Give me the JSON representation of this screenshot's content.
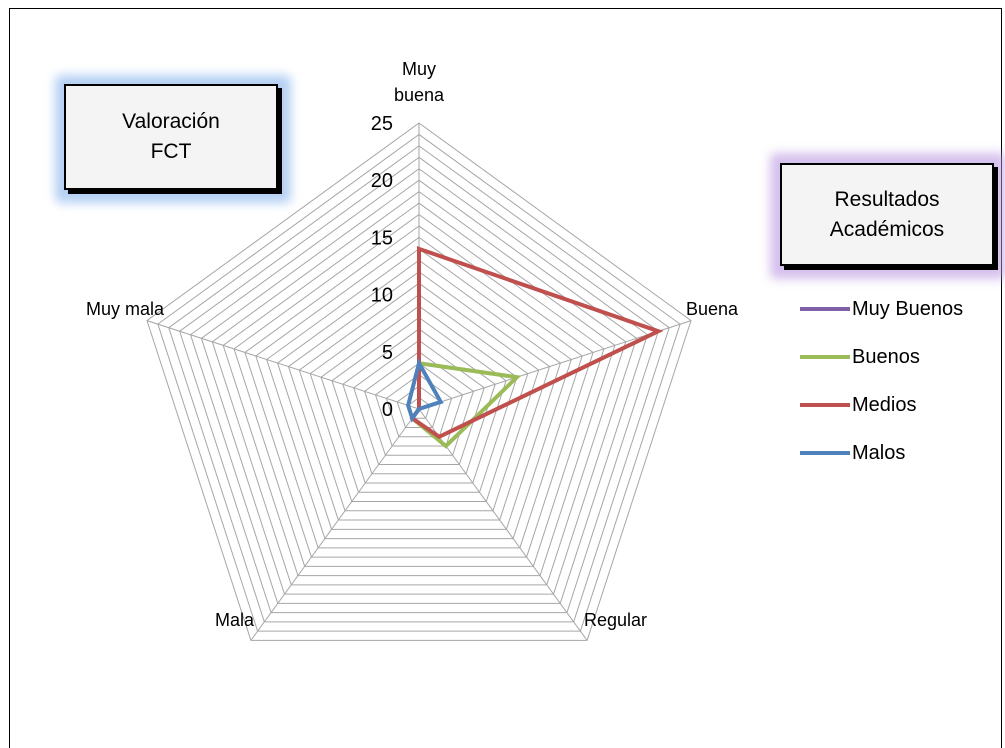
{
  "titles": {
    "main": [
      "Valoración",
      "FCT"
    ],
    "secondary": [
      "Resultados",
      "Académicos"
    ]
  },
  "colors": {
    "muy_buenos": "#7f5fa6",
    "buenos": "#9bbb59",
    "medios": "#c0504d",
    "malos": "#4f81bd",
    "grid": "#a6a6a6"
  },
  "chart_data": {
    "type": "radar",
    "title": "Valoración FCT",
    "categories": [
      "Muy buena",
      "Buena",
      "Regular",
      "Mala",
      "Muy mala"
    ],
    "category_labels": [
      [
        "Muy",
        "buena"
      ],
      [
        "Buena"
      ],
      [
        "Regular"
      ],
      [
        "Mala"
      ],
      [
        "Muy mala"
      ]
    ],
    "rlim": [
      0,
      25
    ],
    "r_ticks": [
      0,
      5,
      10,
      15,
      20,
      25
    ],
    "grid": true,
    "legend_position": "right",
    "series": [
      {
        "name": "Muy Buenos",
        "values": [
          2,
          0,
          0,
          0,
          0
        ],
        "color_key": "muy_buenos"
      },
      {
        "name": "Buenos",
        "values": [
          4,
          9,
          4,
          1,
          0
        ],
        "color_key": "buenos"
      },
      {
        "name": "Medios",
        "values": [
          14,
          22,
          3,
          1,
          0
        ],
        "color_key": "medios"
      },
      {
        "name": "Malos",
        "values": [
          4,
          2,
          0,
          1,
          1
        ],
        "color_key": "malos"
      }
    ]
  }
}
